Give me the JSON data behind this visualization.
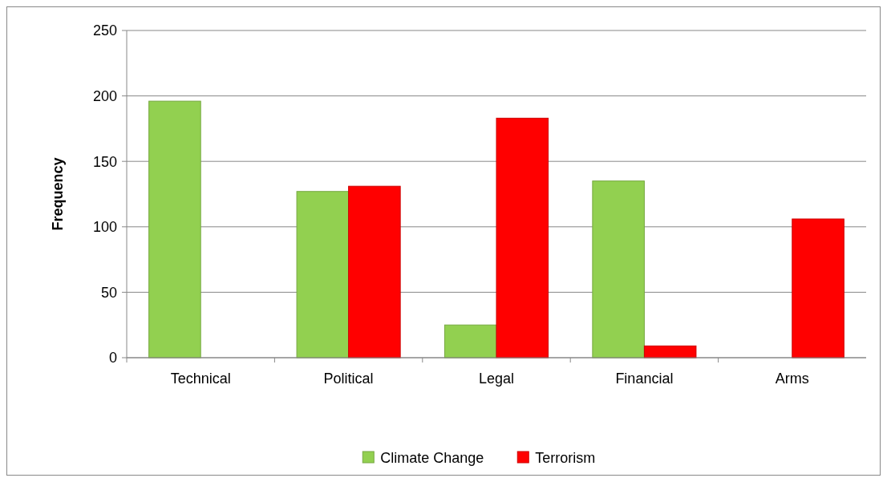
{
  "chart_data": {
    "type": "bar",
    "ylabel": "Frequency",
    "categories": [
      "Technical",
      "Political",
      "Legal",
      "Financial",
      "Arms"
    ],
    "series": [
      {
        "name": "Climate Change",
        "color": "#92d050",
        "values": [
          196,
          127,
          25,
          135,
          null
        ]
      },
      {
        "name": "Terrorism",
        "color": "#ff0000",
        "values": [
          null,
          131,
          183,
          9,
          106
        ]
      }
    ],
    "ylim": [
      0,
      250
    ],
    "yticks": [
      0,
      50,
      100,
      150,
      200,
      250
    ],
    "grid": "y",
    "legend": "bottom"
  }
}
